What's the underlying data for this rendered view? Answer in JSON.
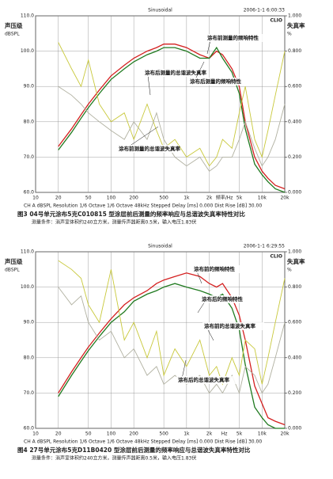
{
  "chart_data": [
    {
      "type": "line",
      "title": "Sinusoidal",
      "timestamp": "2006-1-1 6:00:33",
      "brand": "CLIO",
      "ylabel": "声压级",
      "yunit": "dBSPL",
      "y2label": "失真率",
      "y2unit": "%",
      "xlabel": "频率/Hz",
      "footer": "CH A   dBSPL   Resolution 1/6 Octave   1/6 Octave   48kHz   Stepped   Delay [ms] 0.000   Dist Rise [dB] 30.00",
      "caption": "图3  04号单元涂布5克C010815 型涂层前后测量的频率响应与总谐波失真率特性对比",
      "note": "测量条件：消声室体积约240立方米，测量传声器距离0.5米，输入电压1.83伏",
      "xscale": "log",
      "grid": true,
      "x": [
        20,
        30,
        40,
        50,
        70,
        100,
        150,
        200,
        300,
        400,
        500,
        700,
        1000,
        1500,
        2000,
        2500,
        3000,
        4000,
        5000,
        6000,
        8000,
        10000,
        12000,
        15000,
        20000
      ],
      "xlim": [
        10,
        20000
      ],
      "xticks": [
        10,
        20,
        50,
        100,
        200,
        500,
        {
          "value": 1000,
          "label": "1k"
        },
        {
          "value": 2000,
          "label": "2k"
        },
        {
          "value": 5000,
          "label": "5k"
        },
        {
          "value": 10000,
          "label": "10k"
        },
        {
          "value": 20000,
          "label": "20k"
        }
      ],
      "ylim": [
        60,
        110
      ],
      "yticks": [
        {
          "value": 60,
          "label": "60.0"
        },
        {
          "value": 70,
          "label": "70.0"
        },
        {
          "value": 80,
          "label": "80.0"
        },
        {
          "value": 90,
          "label": "90.0"
        },
        {
          "value": 100,
          "label": "100.0"
        },
        {
          "value": 110,
          "label": "110.0"
        }
      ],
      "y2lim": [
        0,
        1
      ],
      "y2ticks": [
        {
          "value": 0,
          "label": "0.000"
        },
        {
          "value": 0.2,
          "label": "0.200"
        },
        {
          "value": 0.4,
          "label": "0.400"
        },
        {
          "value": 0.6,
          "label": "0.600"
        },
        {
          "value": 0.8,
          "label": "0.800"
        },
        {
          "value": 1,
          "label": "1.000"
        }
      ],
      "series": [
        {
          "color": "#d42020",
          "values": [
            73,
            78,
            82,
            85,
            89,
            93,
            96,
            98,
            100,
            101,
            102,
            102,
            101,
            99,
            98,
            100,
            99,
            95,
            90,
            80,
            70,
            66,
            64,
            62,
            61
          ]
        },
        {
          "color": "#207a20",
          "values": [
            72,
            77,
            81,
            84,
            88,
            92,
            95,
            97,
            99,
            100,
            101,
            101,
            100,
            98,
            98,
            101,
            98,
            94,
            88,
            78,
            68,
            65,
            63,
            61,
            60
          ]
        },
        {
          "color": "#c8c83a",
          "axis": "y2",
          "values": [
            0.85,
            0.7,
            0.6,
            0.75,
            0.5,
            0.4,
            0.45,
            0.3,
            0.5,
            0.35,
            0.25,
            0.3,
            0.2,
            0.25,
            0.15,
            0.2,
            0.3,
            0.25,
            0.45,
            0.6,
            0.3,
            0.2,
            0.35,
            0.55,
            0.8
          ]
        },
        {
          "color": "#b0b0a0",
          "axis": "y2",
          "values": [
            0.6,
            0.55,
            0.5,
            0.45,
            0.4,
            0.35,
            0.3,
            0.4,
            0.3,
            0.45,
            0.3,
            0.2,
            0.15,
            0.2,
            0.12,
            0.15,
            0.2,
            0.2,
            0.3,
            0.4,
            0.25,
            0.15,
            0.2,
            0.3,
            0.5
          ]
        }
      ],
      "annotations": [
        "涂布前测量的频响特性",
        "涂布后测量的总谐波失真率",
        "涂布后测量的频响特性",
        "涂布前测量的总谐波失真率"
      ]
    },
    {
      "type": "line",
      "title": "Sinusoidal",
      "timestamp": "2006-1-1 6:29:55",
      "brand": "CLIO",
      "ylabel": "声压级",
      "yunit": "dBSPL",
      "y2label": "失真率",
      "y2unit": "%",
      "xlabel": "Hz",
      "footer": "CH A   dBSPL   Resolution 1/6 Octave   1/6 Octave   48kHz   Stepped   Delay [ms] 0.000   Dist Rise [dB] 30.00",
      "caption": "图4  27号单元涂布5克D11B0420 型涂层前后测量的频率响应与总谐波失真率特性对比",
      "note": "测量条件：消声室体积约240立方米，测量传声器距离0.5米，输入电压1.83伏",
      "xscale": "log",
      "grid": true,
      "x": [
        20,
        30,
        40,
        50,
        70,
        100,
        150,
        200,
        300,
        400,
        500,
        700,
        1000,
        1500,
        2000,
        2500,
        3000,
        4000,
        5000,
        6000,
        8000,
        10000,
        12000,
        15000,
        20000
      ],
      "xlim": [
        10,
        20000
      ],
      "xticks": [
        10,
        20,
        50,
        100,
        200,
        500,
        {
          "value": 1000,
          "label": "1k"
        },
        {
          "value": 2000,
          "label": "2k"
        },
        {
          "value": 5000,
          "label": "5k"
        },
        {
          "value": 10000,
          "label": "10k"
        },
        {
          "value": 20000,
          "label": "20k"
        }
      ],
      "ylim": [
        60,
        110
      ],
      "yticks": [
        {
          "value": 60,
          "label": "60.0"
        },
        {
          "value": 70,
          "label": "70.0"
        },
        {
          "value": 80,
          "label": "80.0"
        },
        {
          "value": 90,
          "label": "90.0"
        },
        {
          "value": 100,
          "label": "100.0"
        },
        {
          "value": 110,
          "label": "110.0"
        }
      ],
      "y2lim": [
        0,
        1
      ],
      "y2ticks": [
        {
          "value": 0,
          "label": "0.000"
        },
        {
          "value": 0.2,
          "label": "0.200"
        },
        {
          "value": 0.4,
          "label": "0.400"
        },
        {
          "value": 0.6,
          "label": "0.600"
        },
        {
          "value": 0.8,
          "label": "0.800"
        },
        {
          "value": 1,
          "label": "1.000"
        }
      ],
      "series": [
        {
          "color": "#d42020",
          "values": [
            70,
            76,
            80,
            83,
            87,
            91,
            95,
            97,
            99,
            101,
            102,
            103,
            104,
            103,
            101,
            100,
            101,
            97,
            92,
            85,
            72,
            67,
            63,
            62,
            61
          ]
        },
        {
          "color": "#207a20",
          "values": [
            69,
            75,
            79,
            82,
            86,
            90,
            93,
            96,
            98,
            99,
            100,
            101,
            100,
            99,
            98,
            97,
            98,
            94,
            88,
            78,
            66,
            63,
            61,
            60,
            60
          ]
        },
        {
          "color": "#c8c83a",
          "axis": "y2",
          "values": [
            0.95,
            0.9,
            0.85,
            0.7,
            0.6,
            0.9,
            0.5,
            0.6,
            0.4,
            0.55,
            0.3,
            0.45,
            0.35,
            0.5,
            0.3,
            0.35,
            0.25,
            0.4,
            0.3,
            0.5,
            0.45,
            0.25,
            0.4,
            0.6,
            0.85
          ]
        },
        {
          "color": "#b0b0a0",
          "axis": "y2",
          "values": [
            0.8,
            0.7,
            0.75,
            0.6,
            0.5,
            0.55,
            0.4,
            0.45,
            0.3,
            0.35,
            0.25,
            0.3,
            0.25,
            0.3,
            0.2,
            0.25,
            0.2,
            0.3,
            0.2,
            0.35,
            0.3,
            0.2,
            0.25,
            0.4,
            0.6
          ]
        }
      ],
      "annotations": [
        "涂布前的频响特性",
        "涂布后的频响特性",
        "涂布前的总谐波失真率",
        "涂布后的总谐波失真率"
      ]
    }
  ]
}
